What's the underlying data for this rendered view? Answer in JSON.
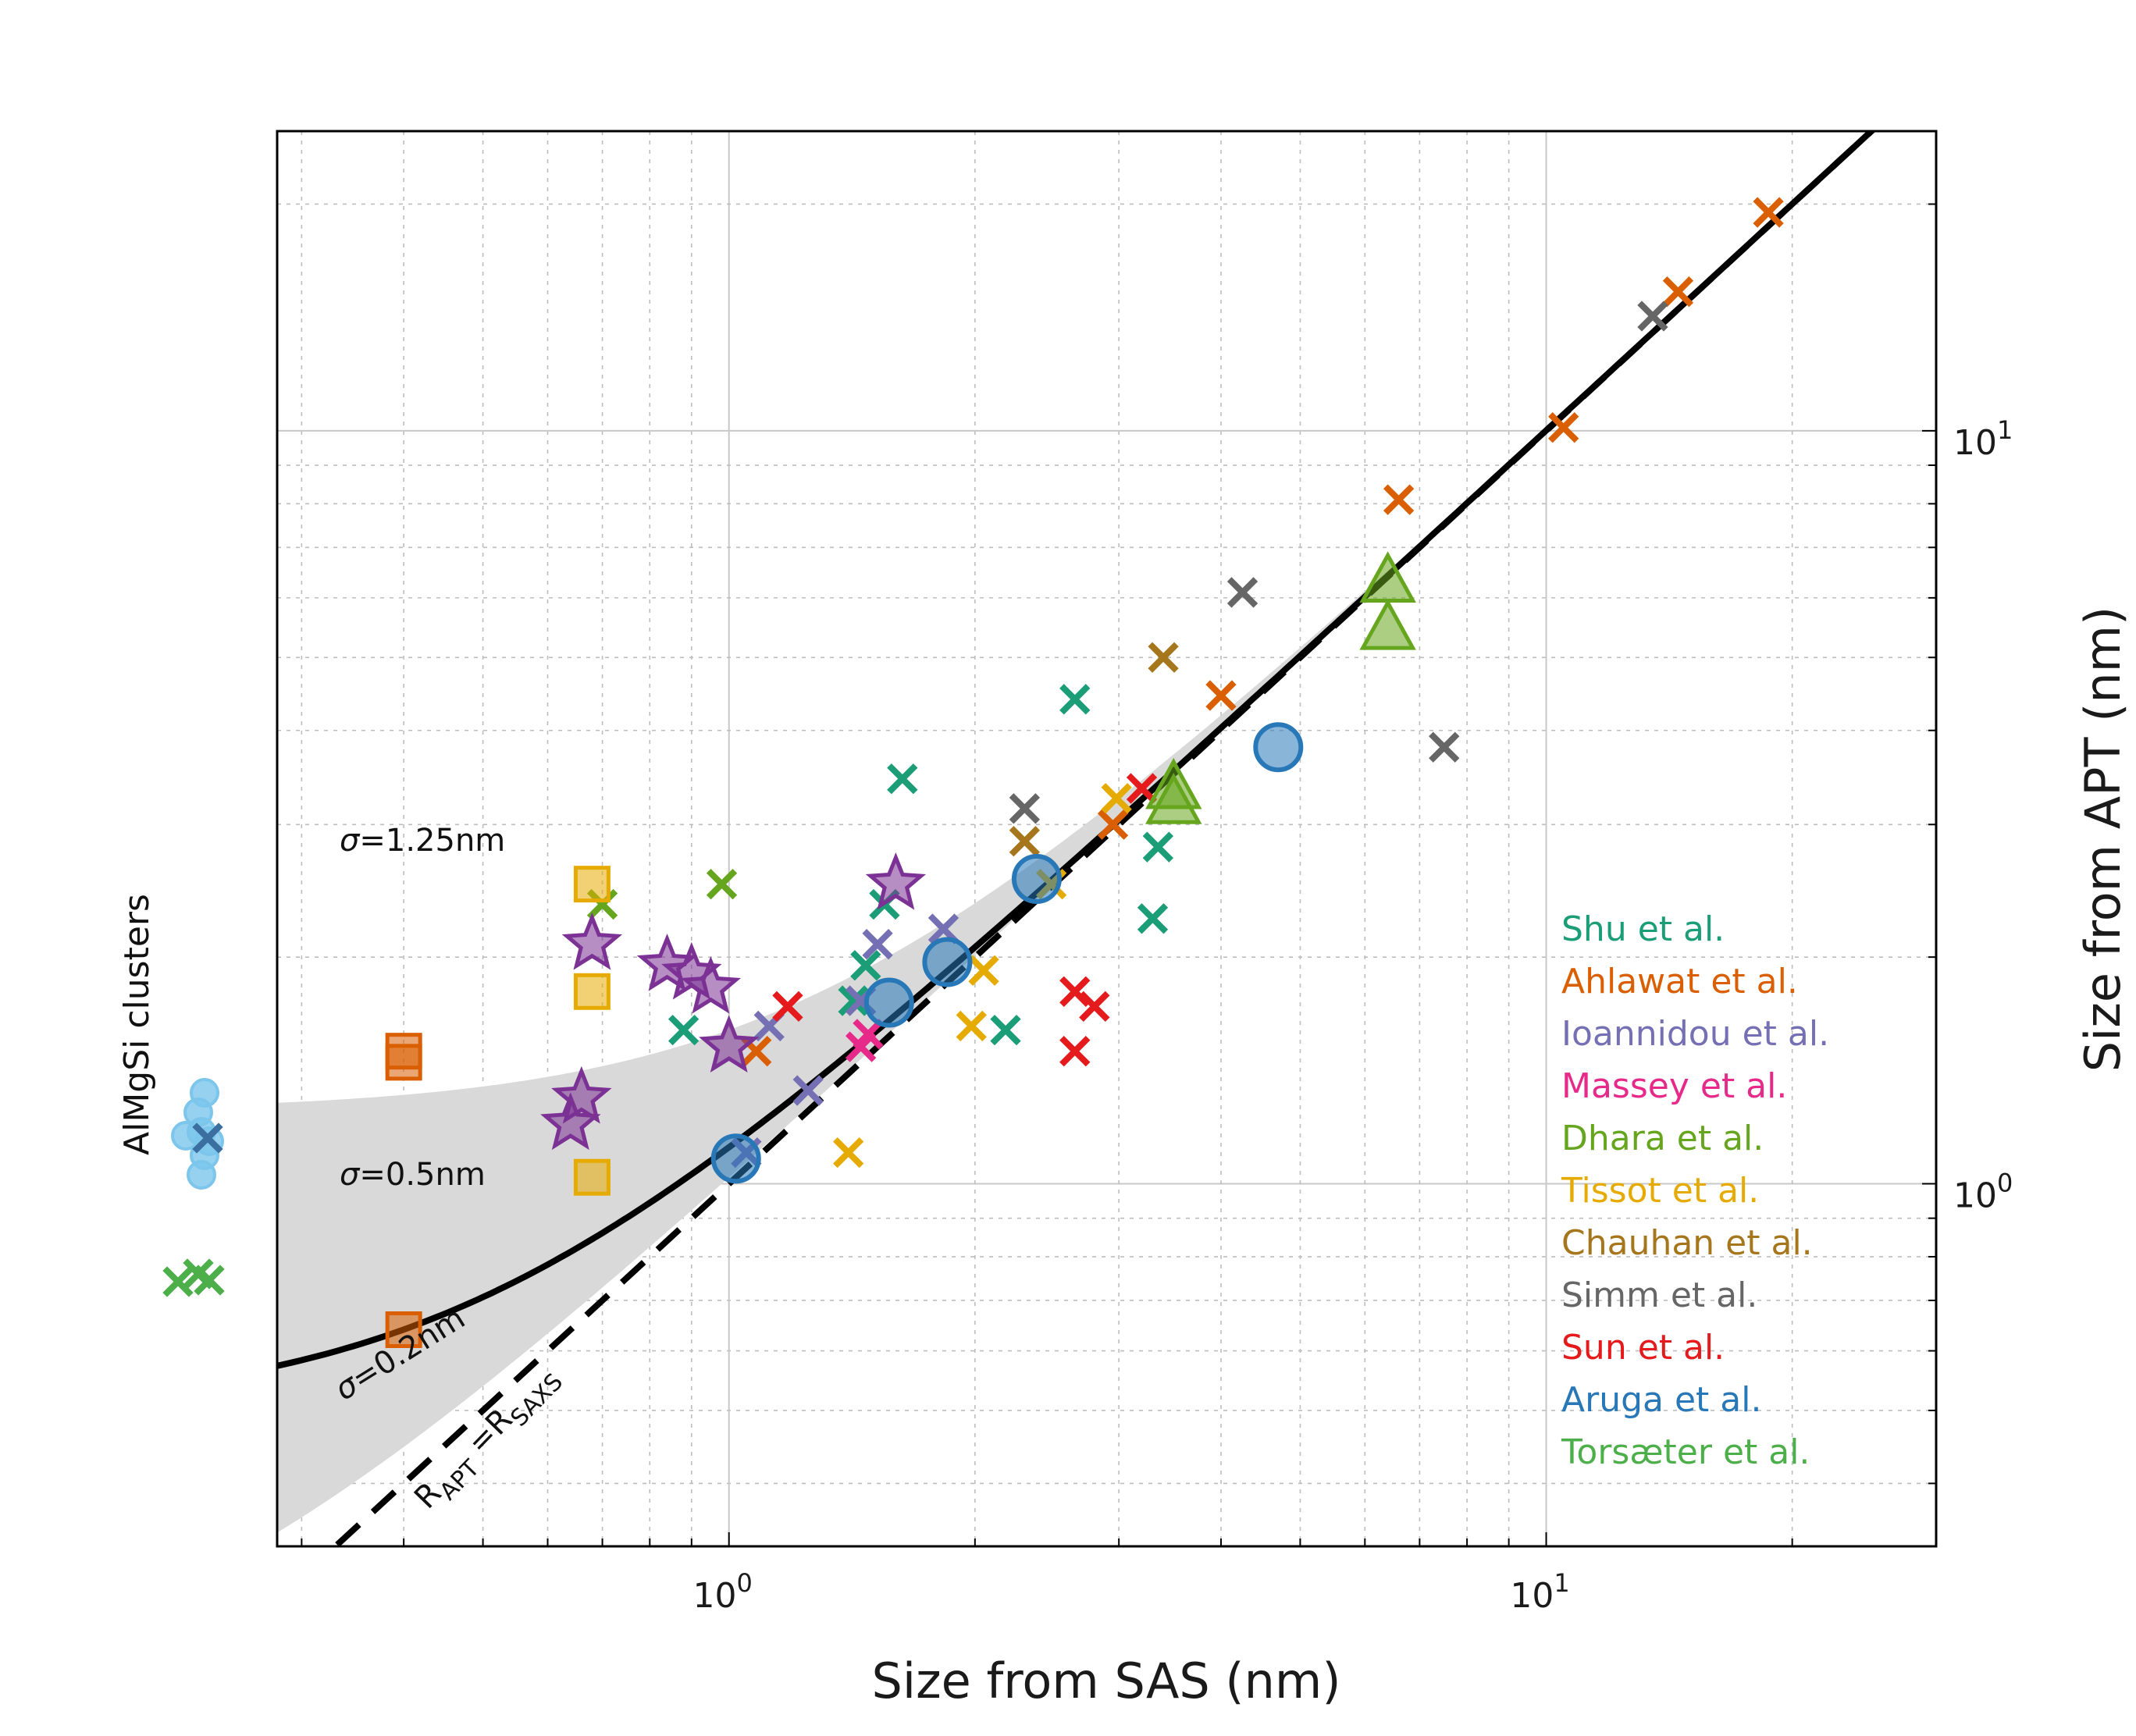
{
  "chart_data": {
    "type": "scatter",
    "xlabel": "Size from SAS (nm)",
    "ylabel": "Size from APT (nm)",
    "x_scale": "log",
    "y_scale": "log",
    "xlim": [
      0.28,
      30
    ],
    "ylim": [
      0.33,
      25
    ],
    "x_ticks": [
      {
        "base": "10",
        "exp": "0",
        "value": 1
      },
      {
        "base": "10",
        "exp": "1",
        "value": 10
      }
    ],
    "y_ticks": [
      {
        "base": "10",
        "exp": "0",
        "value": 1
      },
      {
        "base": "10",
        "exp": "1",
        "value": 10
      }
    ],
    "grid": true,
    "legend_position": "bottom-right",
    "side_label": "AlMgSi clusters",
    "annotations": {
      "sigma_high": "=1.25nm",
      "sigma_mid": "=0.5nm",
      "sigma_low": "=0.2nm",
      "sigma_symbol": "σ",
      "identity_R1": "R",
      "identity_sub1": "APT",
      "identity_eq": " =R",
      "identity_sub2": "SAXS"
    },
    "model_curve": {
      "name": "APT/SAS size model (σ=0.5nm)",
      "c": 0.5
    },
    "band": {
      "name": "σ range",
      "c_low": 0.2,
      "c_high": 1.25
    },
    "identity_line": {
      "name": "R_APT = R_SAXS",
      "style": "dashed"
    },
    "series": [
      {
        "name": "Shu et al.",
        "color": "#1b9e77",
        "marker": "x",
        "points": [
          [
            0.88,
            1.6
          ],
          [
            1.42,
            1.75
          ],
          [
            1.47,
            1.95
          ],
          [
            1.55,
            2.35
          ],
          [
            2.18,
            1.6
          ],
          [
            2.65,
            4.4
          ],
          [
            3.3,
            2.25
          ],
          [
            3.35,
            2.8
          ],
          [
            1.63,
            3.45
          ]
        ]
      },
      {
        "name": "Ahlawat et al.",
        "color": "#d95f02",
        "marker": "x",
        "points": [
          [
            1.08,
            1.5
          ],
          [
            2.95,
            3.0
          ],
          [
            4.0,
            4.45
          ],
          [
            6.6,
            8.1
          ],
          [
            10.5,
            10.1
          ],
          [
            14.5,
            15.3
          ],
          [
            18.7,
            19.5
          ]
        ]
      },
      {
        "name": "Ioannidou et al.",
        "color": "#7570b3",
        "marker": "x",
        "points": [
          [
            1.12,
            1.62
          ],
          [
            1.25,
            1.33
          ],
          [
            1.45,
            1.75
          ],
          [
            1.52,
            2.08
          ],
          [
            1.83,
            2.18
          ],
          [
            1.05,
            1.1
          ]
        ]
      },
      {
        "name": "Massey et al.",
        "color": "#e7298a",
        "marker": "x",
        "points": [
          [
            1.45,
            1.52
          ],
          [
            1.48,
            1.58
          ]
        ]
      },
      {
        "name": "Dhara et al.",
        "color": "#66a61e",
        "marker": "x",
        "points": [
          [
            0.98,
            2.5
          ],
          [
            0.7,
            2.35
          ]
        ]
      },
      {
        "name": "Tissot et al.",
        "color": "#e6ab02",
        "marker": "x",
        "points": [
          [
            1.4,
            1.1
          ],
          [
            1.98,
            1.62
          ],
          [
            2.05,
            1.92
          ],
          [
            2.48,
            2.5
          ],
          [
            2.98,
            3.25
          ]
        ]
      },
      {
        "name": "Chauhan et al.",
        "color": "#a6761d",
        "marker": "x",
        "points": [
          [
            2.3,
            2.85
          ],
          [
            3.4,
            5.0
          ]
        ]
      },
      {
        "name": "Simm et al.",
        "color": "#666666",
        "marker": "x",
        "points": [
          [
            2.3,
            3.15
          ],
          [
            4.25,
            6.1
          ],
          [
            7.5,
            3.8
          ],
          [
            13.5,
            14.2
          ]
        ]
      },
      {
        "name": "Sun et al.",
        "color": "#e41a1c",
        "marker": "x",
        "points": [
          [
            1.18,
            1.72
          ],
          [
            2.65,
            1.5
          ],
          [
            2.65,
            1.8
          ],
          [
            2.8,
            1.72
          ],
          [
            3.2,
            3.35
          ]
        ]
      },
      {
        "name": "Aruga et al.",
        "color": "#2878b8",
        "marker": "circle",
        "points": [
          [
            1.02,
            1.08
          ],
          [
            1.57,
            1.74
          ],
          [
            1.85,
            1.97
          ],
          [
            2.38,
            2.54
          ],
          [
            4.7,
            3.8
          ]
        ]
      },
      {
        "name": "Torsæter et al.",
        "color": "#4daf4a",
        "marker": "x",
        "points": [],
        "side_markers": 3
      },
      {
        "name": "Stars (purple)",
        "color": "#7b3294",
        "marker": "star",
        "in_legend": false,
        "points": [
          [
            0.68,
            2.08
          ],
          [
            0.84,
            1.95
          ],
          [
            0.9,
            1.9
          ],
          [
            0.95,
            1.82
          ],
          [
            1.0,
            1.52
          ],
          [
            1.6,
            2.5
          ],
          [
            0.66,
            1.3
          ],
          [
            0.64,
            1.2
          ]
        ]
      },
      {
        "name": "Squares (yellow)",
        "color": "#e6ab02",
        "marker": "square",
        "in_legend": false,
        "points": [
          [
            0.68,
            2.5
          ],
          [
            0.68,
            1.8
          ],
          [
            0.68,
            1.02
          ]
        ]
      },
      {
        "name": "Squares (orange)",
        "color": "#d95f02",
        "marker": "square",
        "in_legend": false,
        "points": [
          [
            0.4,
            1.45
          ],
          [
            0.4,
            1.5
          ],
          [
            0.4,
            0.64
          ]
        ]
      },
      {
        "name": "Triangles (green)",
        "color": "#66a61e",
        "marker": "triangle",
        "in_legend": false,
        "points": [
          [
            6.4,
            6.3
          ],
          [
            6.4,
            5.45
          ],
          [
            3.5,
            3.35
          ],
          [
            3.5,
            3.2
          ]
        ]
      }
    ],
    "legend_entries": [
      "Shu et al.",
      "Ahlawat et al.",
      "Ioannidou et al.",
      "Massey et al.",
      "Dhara et al.",
      "Tissot et al.",
      "Chauhan et al.",
      "Simm et al.",
      "Sun et al.",
      "Aruga et al.",
      "Torsæter et al."
    ]
  }
}
